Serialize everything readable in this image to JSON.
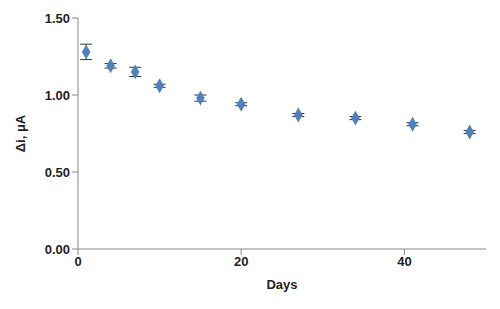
{
  "chart_data": {
    "type": "scatter",
    "x_label": "Days",
    "y_label": "Δi, μA",
    "x": [
      1,
      4,
      7,
      10,
      15,
      20,
      27,
      34,
      41,
      48
    ],
    "values": [
      1.28,
      1.19,
      1.15,
      1.06,
      0.98,
      0.94,
      0.87,
      0.85,
      0.81,
      0.76
    ],
    "errors": [
      0.05,
      0.015,
      0.03,
      0.01,
      0.02,
      0.01,
      0.01,
      0.01,
      0.01,
      0.01
    ],
    "color": "#4f81bd",
    "marker": "diamond",
    "xlim": [
      0,
      50
    ],
    "xticks": [
      0,
      20,
      40
    ],
    "ylim": [
      0,
      1.5
    ],
    "yticks": [
      {
        "value": 0,
        "label": "0.00"
      },
      {
        "value": 0.5,
        "label": "0.50"
      },
      {
        "value": 1,
        "label": "1.00"
      },
      {
        "value": 1.5,
        "label": "1.50"
      }
    ],
    "grid": false
  }
}
